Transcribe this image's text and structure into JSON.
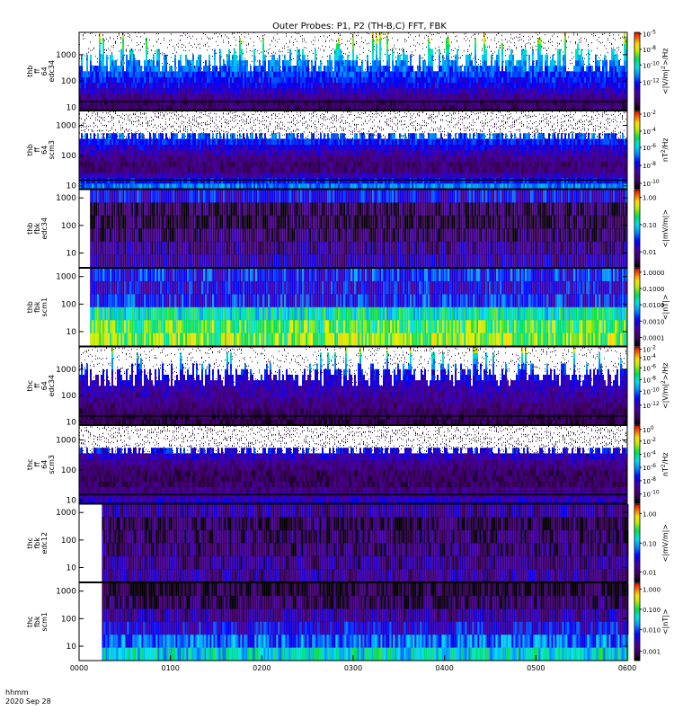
{
  "chart_data": {
    "type": "heatmap",
    "title": "Outer Probes: P1, P2 (TH-B,C) FFT, FBK",
    "time_label_line1": "hhmm",
    "time_label_line2": "2020 Sep 28",
    "xticks": [
      "0000",
      "0100",
      "0200",
      "0300",
      "0400",
      "0500",
      "0600"
    ],
    "xrange_hours": [
      0,
      6
    ],
    "panels": [
      {
        "ylabel": [
          "thb",
          "ff",
          "64",
          "edc34"
        ],
        "yticks": [
          "1000",
          "100",
          "10"
        ],
        "ytick_values": [
          1000,
          100,
          10
        ],
        "yrange": [
          8,
          7000
        ],
        "cbar_label": "<|V/m|^2>/Hz",
        "cbar_ticks": [
          "10^-5",
          "10^-8",
          "10^-10",
          "10^-12"
        ],
        "cbar_tick_positions": [
          0.98,
          0.78,
          0.58,
          0.36
        ],
        "fill_start_hour": 0,
        "profile": [
          [
            0.0,
            0.9
          ],
          [
            0.1,
            0.72
          ],
          [
            0.25,
            0.55
          ],
          [
            0.45,
            0.42
          ],
          [
            0.7,
            0.3
          ],
          [
            0.88,
            0.14
          ],
          [
            1.0,
            0.12
          ]
        ],
        "spiky": true
      },
      {
        "ylabel": [
          "thb",
          "ff",
          "64",
          "scm3"
        ],
        "yticks": [
          "1000",
          "100",
          "10"
        ],
        "ytick_values": [
          1000,
          100,
          10
        ],
        "yrange": [
          8,
          3000
        ],
        "cbar_label": "nT^2/Hz",
        "cbar_ticks": [
          "10^-2",
          "10^-4",
          "10^-6",
          "10^-8",
          "10^-10"
        ],
        "cbar_tick_positions": [
          0.96,
          0.74,
          0.53,
          0.3,
          0.07
        ],
        "fill_start_hour": 0,
        "profile": [
          [
            0.0,
            0.62
          ],
          [
            0.12,
            0.55
          ],
          [
            0.3,
            0.42
          ],
          [
            0.45,
            0.3
          ],
          [
            0.6,
            0.18
          ],
          [
            0.72,
            0.12
          ],
          [
            0.8,
            0.2
          ],
          [
            0.9,
            0.35
          ],
          [
            1.0,
            0.5
          ]
        ],
        "spiky": false
      },
      {
        "ylabel": [
          "thb",
          "fbk",
          "edc34"
        ],
        "yticks": [
          "1000",
          "100",
          "10"
        ],
        "ytick_values": [
          1000,
          100,
          10
        ],
        "yrange": [
          3,
          2000
        ],
        "cbar_label": "<|mV/m|>",
        "cbar_ticks": [
          "1.00",
          "0.10",
          "0.01"
        ],
        "cbar_tick_positions": [
          0.9,
          0.55,
          0.2
        ],
        "fill_start_hour": 0.12,
        "bands": 6,
        "band_profile": [
          0.3,
          0.1,
          0.08,
          0.12,
          0.18,
          0.22
        ],
        "spiky": false
      },
      {
        "ylabel": [
          "thb",
          "fbk",
          "scm1"
        ],
        "yticks": [
          "1000",
          "100",
          "10"
        ],
        "ytick_values": [
          1000,
          100,
          10
        ],
        "yrange": [
          3,
          2000
        ],
        "cbar_label": "<|nT|>",
        "cbar_ticks": [
          "1.0000",
          "0.1000",
          "0.0100",
          "0.0010",
          "0.0001"
        ],
        "cbar_tick_positions": [
          0.95,
          0.74,
          0.53,
          0.32,
          0.11
        ],
        "fill_start_hour": 0.12,
        "bands": 6,
        "band_profile": [
          0.35,
          0.3,
          0.33,
          0.58,
          0.68,
          0.72
        ],
        "spiky": false
      },
      {
        "ylabel": [
          "thc",
          "ff",
          "64",
          "edc34"
        ],
        "yticks": [
          "1000",
          "100",
          "10"
        ],
        "ytick_values": [
          1000,
          100,
          10
        ],
        "yrange": [
          8,
          7000
        ],
        "cbar_label": "<|V/m|^2>/Hz",
        "cbar_ticks": [
          "10^-2",
          "10^-4",
          "10^-6",
          "10^-8",
          "10^-10",
          "10^-12"
        ],
        "cbar_tick_positions": [
          0.97,
          0.86,
          0.73,
          0.58,
          0.43,
          0.25
        ],
        "fill_start_hour": 0,
        "profile": [
          [
            0.0,
            0.92
          ],
          [
            0.12,
            0.55
          ],
          [
            0.3,
            0.35
          ],
          [
            0.5,
            0.25
          ],
          [
            0.7,
            0.18
          ],
          [
            0.88,
            0.1
          ],
          [
            1.0,
            0.08
          ]
        ],
        "spiky": true
      },
      {
        "ylabel": [
          "thc",
          "ff",
          "64",
          "scm3"
        ],
        "yticks": [
          "1000",
          "100",
          "10"
        ],
        "ytick_values": [
          1000,
          100,
          10
        ],
        "yrange": [
          8,
          3000
        ],
        "cbar_label": "nT^2/Hz",
        "cbar_ticks": [
          "10^0",
          "10^-2",
          "10^-4",
          "10^-6",
          "10^-8",
          "10^-10"
        ],
        "cbar_tick_positions": [
          0.95,
          0.8,
          0.63,
          0.46,
          0.29,
          0.12
        ],
        "fill_start_hour": 0,
        "profile": [
          [
            0.0,
            0.52
          ],
          [
            0.15,
            0.45
          ],
          [
            0.3,
            0.35
          ],
          [
            0.45,
            0.2
          ],
          [
            0.6,
            0.12
          ],
          [
            0.75,
            0.12
          ],
          [
            0.88,
            0.2
          ],
          [
            1.0,
            0.3
          ]
        ],
        "spiky": false
      },
      {
        "ylabel": [
          "thc",
          "fbk",
          "edc12"
        ],
        "yticks": [
          "1000",
          "100",
          "10"
        ],
        "ytick_values": [
          1000,
          100,
          10
        ],
        "yrange": [
          3,
          2000
        ],
        "cbar_label": "<|mV/m|>",
        "cbar_ticks": [
          "1.00",
          "0.10",
          "0.01"
        ],
        "cbar_tick_positions": [
          0.88,
          0.5,
          0.13
        ],
        "fill_start_hour": 0.25,
        "bands": 6,
        "band_profile": [
          0.2,
          0.1,
          0.12,
          0.14,
          0.18,
          0.2
        ],
        "spiky": false
      },
      {
        "ylabel": [
          "thc",
          "fbk",
          "scm1"
        ],
        "yticks": [
          "1000",
          "100",
          "10"
        ],
        "ytick_values": [
          1000,
          100,
          10
        ],
        "yrange": [
          3,
          2000
        ],
        "cbar_label": "<|nT|>",
        "cbar_ticks": [
          "1.000",
          "0.100",
          "0.010",
          "0.001"
        ],
        "cbar_tick_positions": [
          0.92,
          0.66,
          0.4,
          0.12
        ],
        "fill_start_hour": 0.25,
        "bands": 6,
        "band_profile": [
          0.05,
          0.1,
          0.2,
          0.3,
          0.42,
          0.55
        ],
        "spiky": false
      }
    ]
  }
}
